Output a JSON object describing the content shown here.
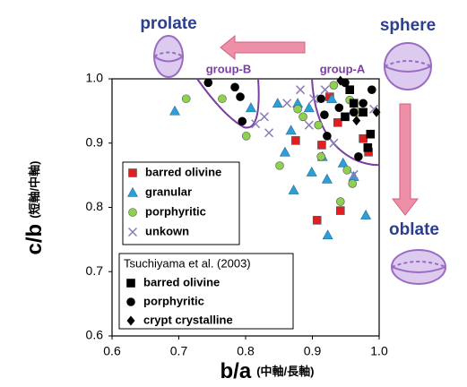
{
  "chart_data": {
    "type": "scatter",
    "xlabel": "b/a",
    "xlabel_sub": "(中軸/長軸)",
    "ylabel": "c/b",
    "ylabel_sub": "(短軸/中軸)",
    "annotations": {
      "prolate": "prolate",
      "sphere": "sphere",
      "oblate": "oblate",
      "group_b": "group-B",
      "group_a": "group-A"
    },
    "legend_title": "Tsuchiyama et al. (2003)",
    "xlim": [
      0.6,
      1.0
    ],
    "ylim": [
      0.6,
      1.0
    ],
    "xticks": [
      0.6,
      0.7,
      0.8,
      0.9,
      {
        "value": 1,
        "label": "1.0"
      }
    ],
    "yticks": [
      0.6,
      0.7,
      0.8,
      0.9,
      {
        "value": 1,
        "label": "1.0"
      }
    ],
    "series": [
      {
        "name": "barred olivine",
        "marker": "square",
        "color": "#e02020",
        "x": [
          0.875,
          0.914,
          0.926,
          0.938,
          0.907,
          0.942,
          0.976,
          0.984
        ],
        "values": [
          0.904,
          0.897,
          0.972,
          0.932,
          0.78,
          0.795,
          0.907,
          0.886
        ]
      },
      {
        "name": "granular",
        "marker": "triangle",
        "color": "#2a9fd8",
        "x": [
          0.694,
          0.808,
          0.848,
          0.868,
          0.878,
          0.872,
          0.859,
          0.899,
          0.915,
          0.922,
          0.923,
          0.946,
          0.962,
          0.98,
          0.895,
          0.929
        ],
        "values": [
          0.95,
          0.955,
          0.962,
          0.92,
          0.962,
          0.827,
          0.886,
          0.855,
          0.879,
          0.844,
          0.757,
          0.869,
          0.848,
          0.788,
          0.955,
          0.969
        ]
      },
      {
        "name": "porphyritic",
        "marker": "circle",
        "color": "#8fd14f",
        "x": [
          0.711,
          0.765,
          0.801,
          0.851,
          0.878,
          0.886,
          0.909,
          0.932,
          0.956,
          0.952,
          0.942,
          0.96,
          0.969,
          0.913
        ],
        "values": [
          0.969,
          0.969,
          0.911,
          0.865,
          0.953,
          0.941,
          0.928,
          0.99,
          0.967,
          0.858,
          0.809,
          0.837,
          0.948,
          0.879
        ]
      },
      {
        "name": "unkown",
        "marker": "x",
        "color": "#8b7bb8",
        "x": [
          0.815,
          0.828,
          0.835,
          0.862,
          0.882,
          0.902,
          0.895,
          0.932,
          0.962,
          0.992,
          0.919
        ],
        "values": [
          0.93,
          0.941,
          0.916,
          0.962,
          0.983,
          0.969,
          0.928,
          0.9,
          0.851,
          0.953,
          0.983
        ]
      },
      {
        "name": "barred olivine",
        "marker": "square",
        "color": "#000000",
        "reference": true,
        "x": [
          0.956,
          0.962,
          0.983,
          0.987,
          0.976,
          0.949
        ],
        "values": [
          0.983,
          0.962,
          0.893,
          0.914,
          0.948,
          0.941
        ]
      },
      {
        "name": "porphyritic",
        "marker": "circle",
        "color": "#000000",
        "reference": true,
        "x": [
          0.744,
          0.784,
          0.792,
          0.795,
          0.913,
          0.918,
          0.922,
          0.949,
          0.962,
          0.989,
          0.969,
          0.94,
          0.976
        ],
        "values": [
          0.994,
          0.987,
          0.972,
          0.934,
          0.969,
          0.944,
          0.911,
          0.994,
          0.948,
          0.983,
          0.879,
          0.955,
          0.962
        ]
      },
      {
        "name": "crypt crystalline",
        "marker": "diamond",
        "color": "#000000",
        "reference": true,
        "x": [
          0.942,
          0.966,
          0.996
        ],
        "values": [
          0.997,
          0.935,
          0.948
        ]
      }
    ]
  }
}
